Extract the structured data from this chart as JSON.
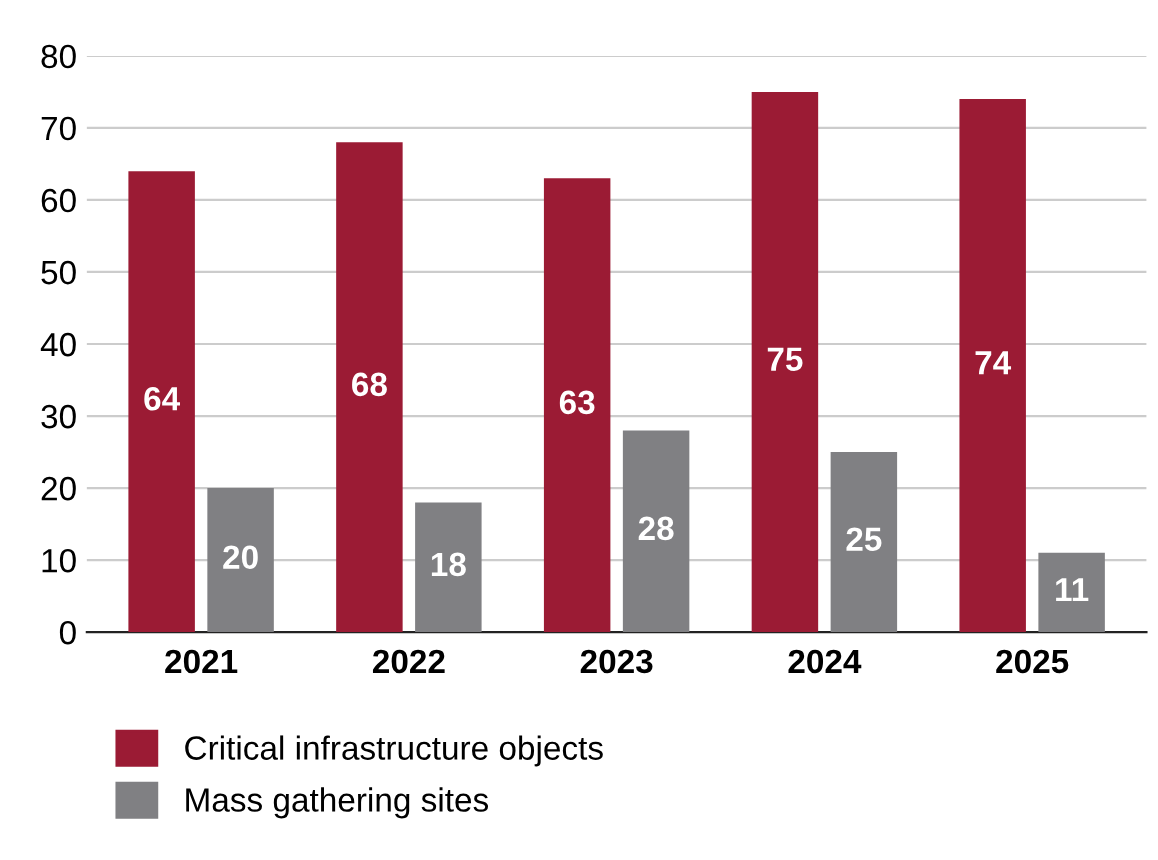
{
  "chart_data": {
    "type": "bar",
    "categories": [
      "2021",
      "2022",
      "2023",
      "2024",
      "2025"
    ],
    "series": [
      {
        "name": "Critical infrastructure objects",
        "color": "#9b1b34",
        "values": [
          64,
          68,
          63,
          75,
          74
        ]
      },
      {
        "name": "Mass gathering sites",
        "color": "#808083",
        "values": [
          20,
          18,
          28,
          25,
          11
        ]
      }
    ],
    "ylim": [
      0,
      80
    ],
    "yticks": [
      0,
      10,
      20,
      30,
      40,
      50,
      60,
      70,
      80
    ],
    "grid": "y",
    "legend": "bottom left",
    "data_labels": true
  }
}
